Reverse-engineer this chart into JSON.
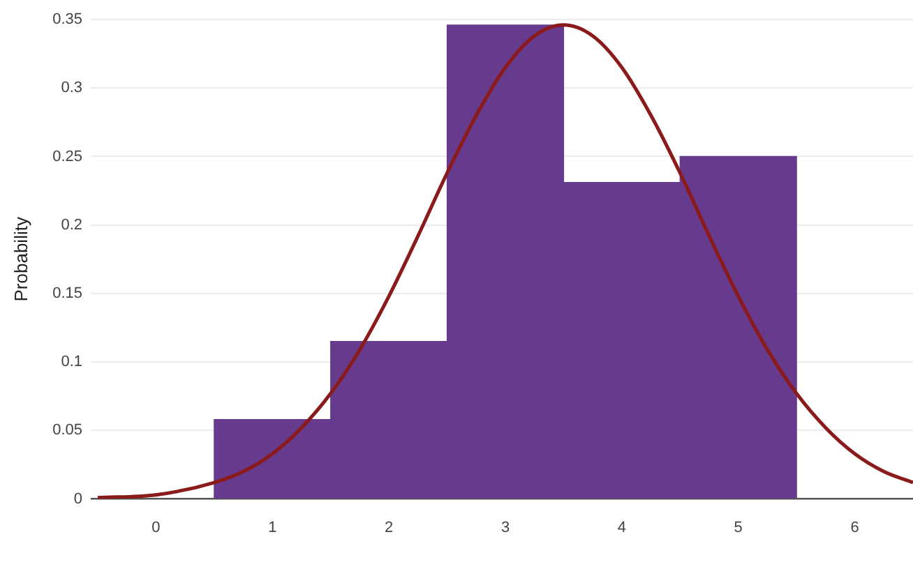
{
  "chart_data": {
    "type": "histogram",
    "ylabel": "Probability",
    "bins": [
      0.5,
      1.5,
      2.5,
      3.5,
      4.5,
      5.5
    ],
    "values": [
      0.058,
      0.115,
      0.346,
      0.231,
      0.25
    ],
    "color": "#663a8c",
    "series": [
      {
        "type": "line",
        "color": "#8b1a1a",
        "x": [
          -0.5,
          0,
          0.5,
          0.75,
          1,
          1.25,
          1.5,
          1.75,
          2,
          2.25,
          2.5,
          2.75,
          3,
          3.25,
          3.5,
          3.75,
          4,
          4.25,
          4.5,
          4.75,
          5,
          5.25,
          5.5,
          5.75,
          6,
          6.25,
          6.5
        ],
        "values": [
          0.001,
          0.003,
          0.012,
          0.02,
          0.033,
          0.052,
          0.077,
          0.109,
          0.148,
          0.192,
          0.238,
          0.28,
          0.315,
          0.338,
          0.346,
          0.338,
          0.315,
          0.28,
          0.238,
          0.192,
          0.148,
          0.109,
          0.077,
          0.052,
          0.033,
          0.02,
          0.012
        ]
      }
    ],
    "xlim": [
      -0.56,
      6.5
    ],
    "xticks": [
      0,
      1,
      2,
      3,
      4,
      5,
      6
    ],
    "ylim": [
      0,
      0.35
    ],
    "yticks": [
      0,
      0.05,
      0.1,
      0.15,
      0.2,
      0.25,
      0.3,
      0.35
    ],
    "grid": "y",
    "legend": false,
    "marker": "none"
  }
}
